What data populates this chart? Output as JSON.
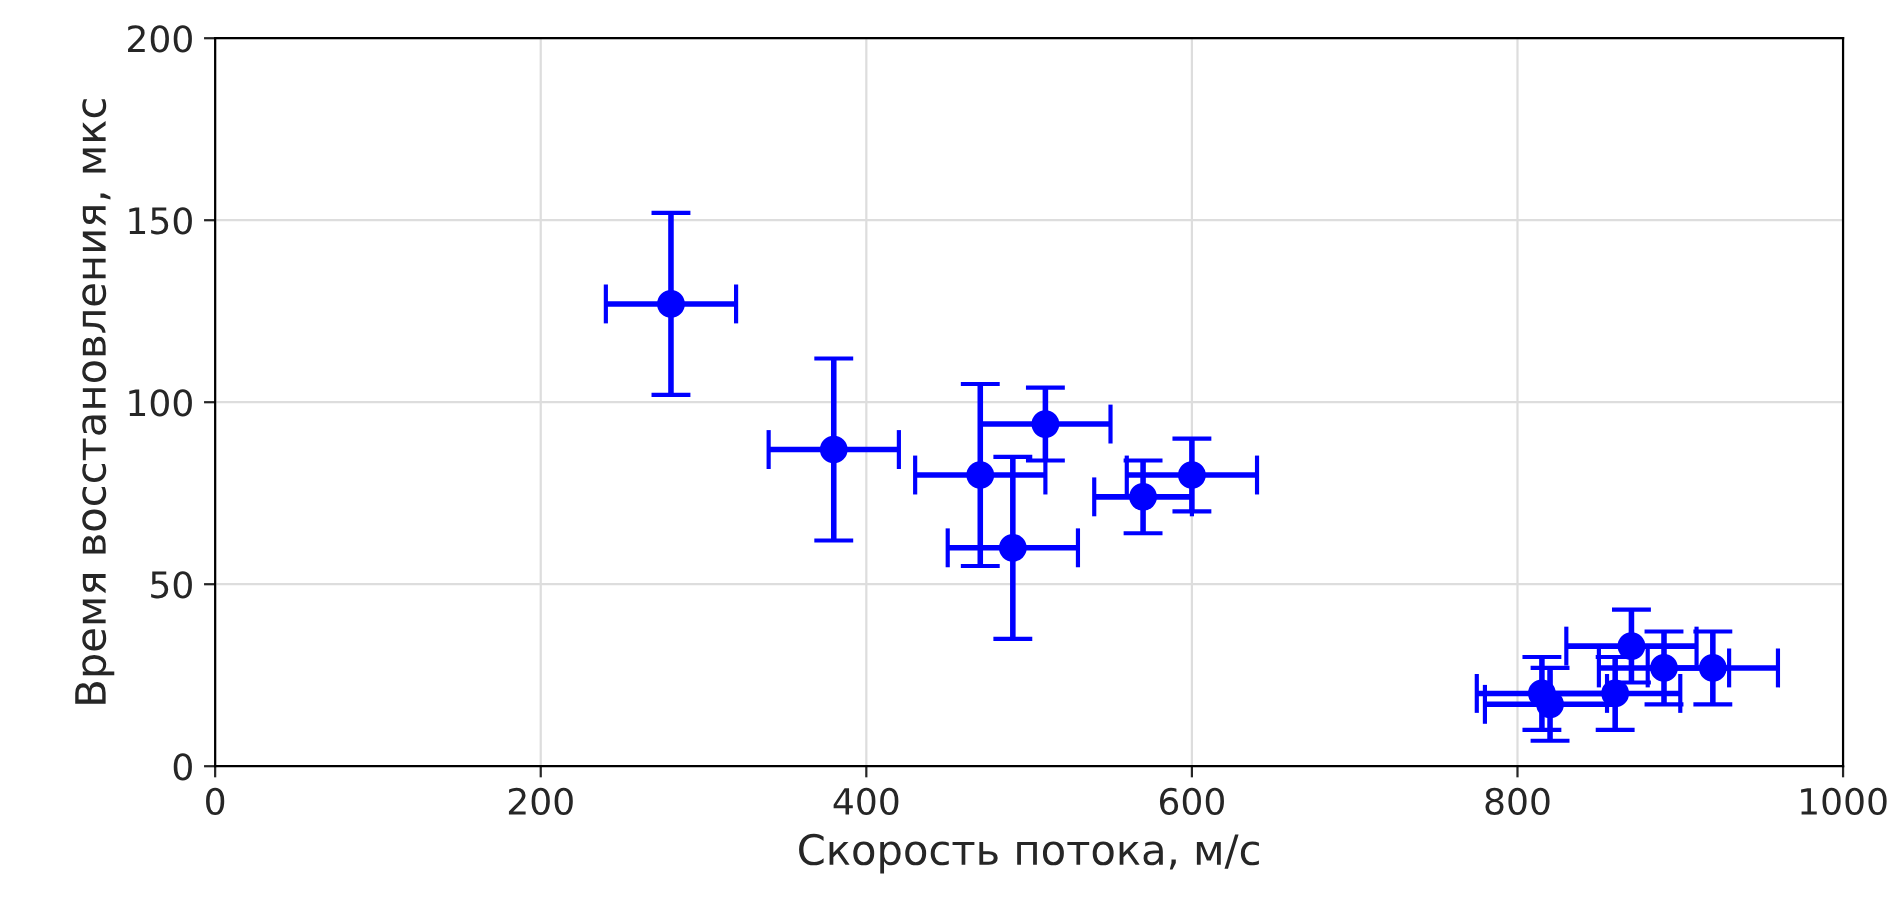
{
  "chart_data": {
    "type": "scatter",
    "xlabel": "Скорость потока, м/с",
    "ylabel": "Время восстановления, мкс",
    "x": [
      280,
      380,
      470,
      490,
      510,
      570,
      600,
      815,
      820,
      860,
      870,
      890,
      920
    ],
    "series": [
      {
        "color": "#0000ff",
        "values": [
          127,
          87,
          80,
          60,
          94,
          74,
          80,
          20,
          17,
          20,
          33,
          27,
          27
        ],
        "errors": [
          25,
          25,
          25,
          25,
          10,
          10,
          10,
          10,
          10,
          10,
          10,
          10,
          10
        ],
        "xerrors": [
          40,
          40,
          40,
          40,
          40,
          30,
          40,
          40,
          40,
          40,
          40,
          40,
          40
        ]
      }
    ],
    "xlim": [
      0,
      1000
    ],
    "xticks": [
      0,
      200,
      400,
      600,
      800,
      1000
    ],
    "ylim": [
      0,
      200
    ],
    "yticks": [
      0,
      50,
      100,
      150,
      200
    ],
    "grid": true,
    "marker": "circle"
  }
}
